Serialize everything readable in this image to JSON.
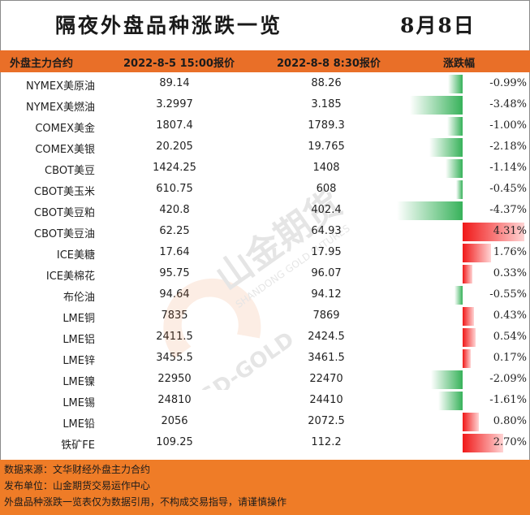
{
  "title": "隔夜外盘品种涨跌一览",
  "date": "8月8日",
  "header": {
    "col_name": "外盘主力合约",
    "col_prev": "2022-8-5 15:00报价",
    "col_curr": "2022-8-8 8:30报价",
    "col_change": "涨跌幅"
  },
  "rows": [
    {
      "name": "NYMEX美原油",
      "prev": "89.14",
      "curr": "88.26",
      "change": "-0.99%"
    },
    {
      "name": "NYMEX美燃油",
      "prev": "3.2997",
      "curr": "3.185",
      "change": "-3.48%"
    },
    {
      "name": "COMEX美金",
      "prev": "1807.4",
      "curr": "1789.3",
      "change": "-1.00%"
    },
    {
      "name": "COMEX美银",
      "prev": "20.205",
      "curr": "19.765",
      "change": "-2.18%"
    },
    {
      "name": "CBOT美豆",
      "prev": "1424.25",
      "curr": "1408",
      "change": "-1.14%"
    },
    {
      "name": "CBOT美玉米",
      "prev": "610.75",
      "curr": "608",
      "change": "-0.45%"
    },
    {
      "name": "CBOT美豆粕",
      "prev": "420.8",
      "curr": "402.4",
      "change": "-4.37%"
    },
    {
      "name": "CBOT美豆油",
      "prev": "62.25",
      "curr": "64.93",
      "change": "4.31%"
    },
    {
      "name": "ICE美糖",
      "prev": "17.64",
      "curr": "17.95",
      "change": "1.76%"
    },
    {
      "name": "ICE美棉花",
      "prev": "95.75",
      "curr": "96.07",
      "change": "0.33%"
    },
    {
      "name": "布伦油",
      "prev": "94.64",
      "curr": "94.12",
      "change": "-0.55%"
    },
    {
      "name": "LME铜",
      "prev": "7835",
      "curr": "7869",
      "change": "0.43%"
    },
    {
      "name": "LME铝",
      "prev": "2411.5",
      "curr": "2424.5",
      "change": "0.54%"
    },
    {
      "name": "LME锌",
      "prev": "3455.5",
      "curr": "3461.5",
      "change": "0.17%"
    },
    {
      "name": "LME镍",
      "prev": "22950",
      "curr": "22470",
      "change": "-2.09%"
    },
    {
      "name": "LME锡",
      "prev": "24810",
      "curr": "24410",
      "change": "-1.61%"
    },
    {
      "name": "LME铅",
      "prev": "2056",
      "curr": "2072.5",
      "change": "0.80%"
    },
    {
      "name": "铁矿FE",
      "prev": "109.25",
      "curr": "112.2",
      "change": "2.70%"
    }
  ],
  "bar_values": [
    -0.99,
    -3.48,
    -1.0,
    -2.18,
    -1.14,
    -0.45,
    -4.37,
    4.31,
    1.76,
    0.33,
    -0.55,
    0.43,
    0.54,
    0.17,
    -2.09,
    -1.61,
    0.8,
    2.7
  ],
  "footer": {
    "source": "数据来源：文华财经外盘主力合约",
    "publisher": "发布单位：山金期货交易运作中心",
    "disclaimer": "外盘品种涨跌一览表仅为数据引用，不构成交易指导，请谨慎操作"
  },
  "watermark": {
    "brand": "山金期货",
    "en": "SHANDONG GOLD FUTURES",
    "logo_text": "SD-GOLD"
  },
  "colors": {
    "header": "#e96f28",
    "footer": "#ef7c27",
    "up": "#f01818",
    "down": "#37b25a"
  }
}
